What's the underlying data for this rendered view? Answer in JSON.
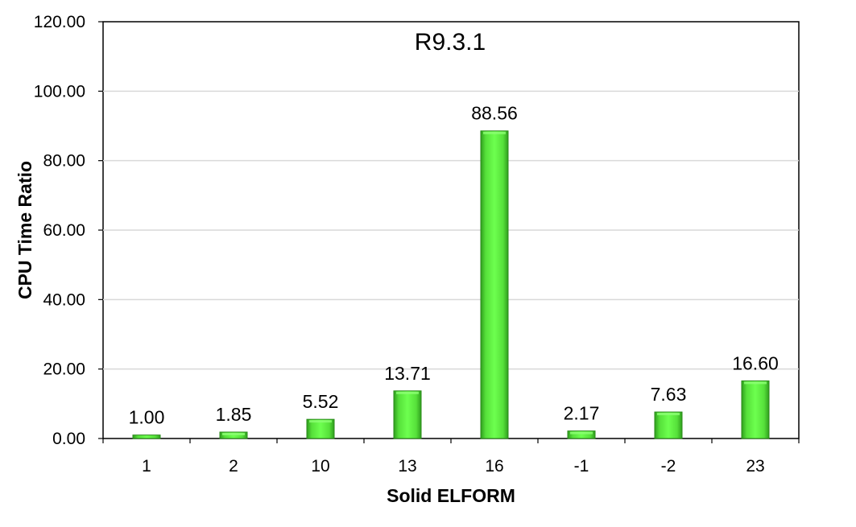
{
  "chart_data": {
    "type": "bar",
    "title": "R9.3.1",
    "xlabel": "Solid ELFORM",
    "ylabel": "CPU Time Ratio",
    "categories": [
      "1",
      "2",
      "10",
      "13",
      "16",
      "-1",
      "-2",
      "23"
    ],
    "values": [
      1.0,
      1.85,
      5.52,
      13.71,
      88.56,
      2.17,
      7.63,
      16.6
    ],
    "value_labels": [
      "1.00",
      "1.85",
      "5.52",
      "13.71",
      "88.56",
      "2.17",
      "7.63",
      "16.60"
    ],
    "ylim": [
      0,
      120
    ],
    "yticks": [
      "0.00",
      "20.00",
      "40.00",
      "60.00",
      "80.00",
      "100.00",
      "120.00"
    ],
    "grid": true,
    "legend": "none",
    "bar_color": "#4cd531",
    "bar_edge_color": "#2a8a1a"
  }
}
